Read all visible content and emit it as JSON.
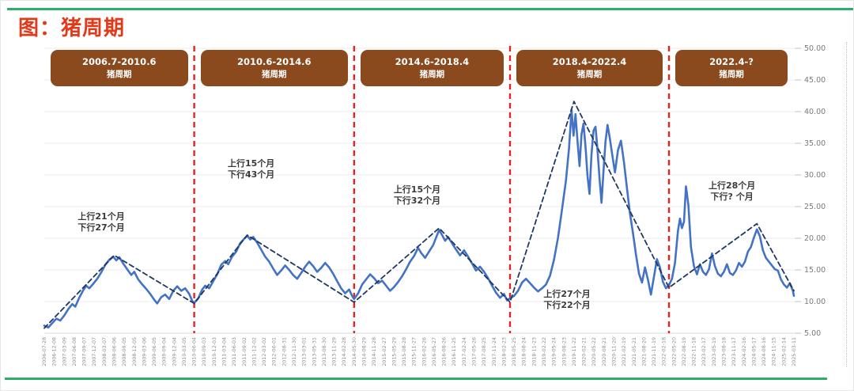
{
  "page": {
    "title": "图：猪周期",
    "title_color": "#e2391b",
    "accent_green": "#2fae6b",
    "cycle_box_color": "#8a4a1e"
  },
  "cycles": [
    {
      "range": "2006.7-2010.6",
      "label": "猪周期"
    },
    {
      "range": "2010.6-2014.6",
      "label": "猪周期"
    },
    {
      "range": "2014.6-2018.4",
      "label": "猪周期"
    },
    {
      "range": "2018.4-2022.4",
      "label": "猪周期"
    },
    {
      "range": "2022.4-?",
      "label": "猪周期"
    }
  ],
  "chart_data": {
    "type": "line",
    "title": "猪周期",
    "ylim": [
      5,
      50
    ],
    "y_ticks": [
      "50.00",
      "45.00",
      "40.00",
      "35.00",
      "30.00",
      "25.00",
      "20.00",
      "15.00",
      "10.00",
      "5.00"
    ],
    "grid": true,
    "x_tick_labels": [
      "2006-07-28",
      "2006-12-08",
      "2007-03-09",
      "2007-06-08",
      "2007-09-07",
      "2007-12-07",
      "2008-03-07",
      "2008-06-06",
      "2008-09-05",
      "2008-12-05",
      "2009-03-06",
      "2009-06-05",
      "2009-09-04",
      "2009-12-04",
      "2010-03-05",
      "2010-06-04",
      "2010-09-03",
      "2010-12-03",
      "2011-03-04",
      "2011-06-03",
      "2011-09-02",
      "2011-12-02",
      "2012-03-02",
      "2012-06-01",
      "2012-08-31",
      "2012-11-30",
      "2013-03-01",
      "2013-05-31",
      "2013-08-30",
      "2013-11-29",
      "2014-02-28",
      "2014-05-30",
      "2014-08-29",
      "2014-11-28",
      "2015-02-27",
      "2015-05-29",
      "2015-08-28",
      "2015-11-27",
      "2016-02-26",
      "2016-05-27",
      "2016-08-26",
      "2016-11-25",
      "2017-02-24",
      "2017-05-26",
      "2017-08-25",
      "2017-11-24",
      "2018-02-23",
      "2018-05-25",
      "2018-08-24",
      "2018-11-23",
      "2019-02-22",
      "2019-05-24",
      "2019-08-23",
      "2019-11-22",
      "2020-02-21",
      "2020-05-22",
      "2020-08-21",
      "2020-11-20",
      "2021-02-19",
      "2021-05-21",
      "2021-08-20",
      "2021-11-19",
      "2022-02-18",
      "2022-05-20",
      "2022-08-19",
      "2022-11-18",
      "2023-02-17",
      "2023-05-19",
      "2023-08-18",
      "2023-11-17",
      "2024-02-16",
      "2024-05-17",
      "2024-08-16",
      "2024-11-15",
      "2025-02-14",
      "2025-03-11"
    ],
    "cycle_boundaries_t": [
      15,
      31,
      46.6,
      62.5
    ],
    "boundary_color": "#e62222",
    "series": [
      {
        "name": "猪价",
        "color": "#4472c4",
        "style": "solid",
        "points": [
          [
            0,
            6.2
          ],
          [
            0.4,
            5.9
          ],
          [
            0.8,
            6.6
          ],
          [
            1.2,
            7.3
          ],
          [
            1.6,
            7.0
          ],
          [
            2,
            7.8
          ],
          [
            2.4,
            8.8
          ],
          [
            2.8,
            9.6
          ],
          [
            3.1,
            9.2
          ],
          [
            3.5,
            10.6
          ],
          [
            3.9,
            11.8
          ],
          [
            4.2,
            12.5
          ],
          [
            4.5,
            12.1
          ],
          [
            4.9,
            12.8
          ],
          [
            5.3,
            13.6
          ],
          [
            5.7,
            14.6
          ],
          [
            6.1,
            15.8
          ],
          [
            6.5,
            16.6
          ],
          [
            6.9,
            17.1
          ],
          [
            7.2,
            16.5
          ],
          [
            7.5,
            17.0
          ],
          [
            7.9,
            16.0
          ],
          [
            8.3,
            15.1
          ],
          [
            8.7,
            14.2
          ],
          [
            9.0,
            14.7
          ],
          [
            9.4,
            13.5
          ],
          [
            9.8,
            12.7
          ],
          [
            10.2,
            12.0
          ],
          [
            10.6,
            11.2
          ],
          [
            11.0,
            10.3
          ],
          [
            11.3,
            9.7
          ],
          [
            11.7,
            10.7
          ],
          [
            12.1,
            11.1
          ],
          [
            12.5,
            10.4
          ],
          [
            12.9,
            11.7
          ],
          [
            13.3,
            12.4
          ],
          [
            13.7,
            11.7
          ],
          [
            14.1,
            12.1
          ],
          [
            14.5,
            11.2
          ],
          [
            14.8,
            10.1
          ],
          [
            15,
            9.8
          ],
          [
            15.4,
            10.5
          ],
          [
            15.8,
            11.9
          ],
          [
            16.1,
            12.5
          ],
          [
            16.5,
            12.1
          ],
          [
            16.9,
            13.2
          ],
          [
            17.3,
            14.3
          ],
          [
            17.7,
            15.8
          ],
          [
            18.1,
            16.4
          ],
          [
            18.4,
            15.9
          ],
          [
            18.8,
            17.1
          ],
          [
            19.2,
            17.9
          ],
          [
            19.6,
            19.2
          ],
          [
            20.0,
            19.9
          ],
          [
            20.3,
            20.4
          ],
          [
            20.6,
            19.8
          ],
          [
            20.9,
            20.2
          ],
          [
            21.3,
            19.3
          ],
          [
            21.7,
            18.2
          ],
          [
            22.1,
            17.1
          ],
          [
            22.5,
            16.3
          ],
          [
            22.9,
            15.2
          ],
          [
            23.3,
            14.2
          ],
          [
            23.7,
            14.9
          ],
          [
            24.1,
            15.7
          ],
          [
            24.5,
            15.0
          ],
          [
            24.9,
            14.2
          ],
          [
            25.3,
            13.6
          ],
          [
            25.7,
            14.5
          ],
          [
            26.1,
            15.5
          ],
          [
            26.5,
            16.3
          ],
          [
            26.9,
            15.6
          ],
          [
            27.3,
            14.7
          ],
          [
            27.7,
            15.3
          ],
          [
            28.1,
            16.1
          ],
          [
            28.5,
            15.4
          ],
          [
            28.9,
            14.4
          ],
          [
            29.3,
            13.2
          ],
          [
            29.7,
            12.1
          ],
          [
            30.1,
            11.3
          ],
          [
            30.5,
            11.9
          ],
          [
            30.8,
            10.9
          ],
          [
            31,
            10.4
          ],
          [
            31.4,
            11.3
          ],
          [
            31.8,
            12.7
          ],
          [
            32.2,
            13.5
          ],
          [
            32.6,
            14.3
          ],
          [
            33.0,
            13.7
          ],
          [
            33.4,
            12.9
          ],
          [
            33.8,
            13.3
          ],
          [
            34.2,
            12.5
          ],
          [
            34.6,
            11.7
          ],
          [
            35.0,
            12.3
          ],
          [
            35.4,
            13.1
          ],
          [
            35.8,
            14.0
          ],
          [
            36.2,
            15.1
          ],
          [
            36.6,
            16.3
          ],
          [
            37.0,
            17.2
          ],
          [
            37.4,
            18.5
          ],
          [
            37.7,
            17.7
          ],
          [
            38.1,
            16.9
          ],
          [
            38.5,
            17.9
          ],
          [
            38.9,
            18.9
          ],
          [
            39.2,
            20.1
          ],
          [
            39.5,
            21.3
          ],
          [
            39.8,
            20.5
          ],
          [
            40.1,
            19.6
          ],
          [
            40.4,
            20.2
          ],
          [
            40.8,
            19.2
          ],
          [
            41.2,
            18.2
          ],
          [
            41.6,
            17.3
          ],
          [
            42.0,
            18.1
          ],
          [
            42.4,
            17.1
          ],
          [
            42.8,
            16.0
          ],
          [
            43.2,
            14.9
          ],
          [
            43.6,
            15.5
          ],
          [
            44.0,
            14.7
          ],
          [
            44.4,
            13.7
          ],
          [
            44.8,
            12.5
          ],
          [
            45.2,
            11.4
          ],
          [
            45.6,
            10.6
          ],
          [
            46.0,
            11.2
          ],
          [
            46.3,
            10.2
          ],
          [
            46.6,
            10.5
          ],
          [
            47.0,
            10.9
          ],
          [
            47.4,
            11.7
          ],
          [
            47.8,
            13.0
          ],
          [
            48.2,
            13.6
          ],
          [
            48.6,
            12.9
          ],
          [
            49.0,
            12.2
          ],
          [
            49.4,
            11.6
          ],
          [
            49.8,
            12.1
          ],
          [
            50.2,
            12.7
          ],
          [
            50.6,
            14.1
          ],
          [
            51.0,
            16.6
          ],
          [
            51.4,
            20.1
          ],
          [
            51.8,
            24.6
          ],
          [
            52.2,
            29.2
          ],
          [
            52.5,
            34.2
          ],
          [
            52.75,
            40.3
          ],
          [
            52.95,
            36.2
          ],
          [
            53.15,
            39.6
          ],
          [
            53.35,
            35.4
          ],
          [
            53.55,
            31.4
          ],
          [
            53.75,
            36.4
          ],
          [
            53.95,
            38.1
          ],
          [
            54.15,
            34.4
          ],
          [
            54.35,
            29.8
          ],
          [
            54.55,
            27.0
          ],
          [
            54.75,
            33.2
          ],
          [
            54.95,
            37.0
          ],
          [
            55.15,
            37.6
          ],
          [
            55.35,
            34.0
          ],
          [
            55.55,
            29.4
          ],
          [
            55.75,
            25.6
          ],
          [
            55.95,
            30.6
          ],
          [
            56.15,
            35.2
          ],
          [
            56.35,
            37.9
          ],
          [
            56.55,
            36.1
          ],
          [
            56.8,
            33.4
          ],
          [
            57.1,
            30.4
          ],
          [
            57.4,
            33.9
          ],
          [
            57.7,
            35.4
          ],
          [
            58.0,
            32.0
          ],
          [
            58.3,
            27.9
          ],
          [
            58.6,
            23.9
          ],
          [
            58.9,
            20.8
          ],
          [
            59.2,
            17.4
          ],
          [
            59.5,
            14.4
          ],
          [
            59.8,
            13.0
          ],
          [
            60.1,
            15.4
          ],
          [
            60.4,
            13.4
          ],
          [
            60.7,
            11.1
          ],
          [
            61.0,
            13.9
          ],
          [
            61.3,
            16.7
          ],
          [
            61.6,
            15.4
          ],
          [
            61.9,
            13.1
          ],
          [
            62.2,
            12.1
          ],
          [
            62.5,
            12.6
          ],
          [
            62.8,
            13.6
          ],
          [
            63.1,
            16.1
          ],
          [
            63.4,
            21.2
          ],
          [
            63.6,
            23.1
          ],
          [
            63.8,
            21.6
          ],
          [
            64.0,
            22.6
          ],
          [
            64.2,
            28.2
          ],
          [
            64.45,
            25.2
          ],
          [
            64.7,
            18.6
          ],
          [
            65.0,
            15.6
          ],
          [
            65.3,
            14.3
          ],
          [
            65.6,
            15.9
          ],
          [
            65.9,
            14.7
          ],
          [
            66.2,
            14.2
          ],
          [
            66.5,
            15.1
          ],
          [
            66.8,
            17.6
          ],
          [
            67.1,
            15.6
          ],
          [
            67.4,
            14.4
          ],
          [
            67.7,
            14.0
          ],
          [
            68.0,
            14.7
          ],
          [
            68.3,
            15.9
          ],
          [
            68.6,
            14.5
          ],
          [
            68.9,
            14.2
          ],
          [
            69.2,
            14.9
          ],
          [
            69.5,
            16.1
          ],
          [
            69.8,
            15.5
          ],
          [
            70.1,
            16.3
          ],
          [
            70.4,
            17.9
          ],
          [
            70.7,
            18.6
          ],
          [
            71.0,
            20.1
          ],
          [
            71.3,
            21.4
          ],
          [
            71.6,
            20.3
          ],
          [
            71.9,
            18.1
          ],
          [
            72.2,
            16.9
          ],
          [
            72.5,
            16.3
          ],
          [
            72.8,
            15.7
          ],
          [
            73.1,
            15.1
          ],
          [
            73.4,
            14.9
          ],
          [
            73.7,
            13.5
          ],
          [
            74.0,
            12.7
          ],
          [
            74.3,
            12.2
          ],
          [
            74.6,
            12.9
          ],
          [
            74.9,
            11.7
          ],
          [
            75,
            10.9
          ]
        ]
      },
      {
        "name": "周期趋势线",
        "color": "#1f3864",
        "style": "dashed",
        "points": [
          [
            0,
            5.8
          ],
          [
            7,
            17.3
          ],
          [
            15,
            9.7
          ],
          [
            20.3,
            20.5
          ],
          [
            31,
            9.9
          ],
          [
            39.5,
            21.6
          ],
          [
            46.6,
            9.9
          ],
          [
            53.0,
            41.6
          ],
          [
            62.5,
            12.2
          ],
          [
            71.3,
            22.3
          ],
          [
            75,
            11.7
          ]
        ]
      }
    ],
    "annotations": [
      {
        "lines": [
          "上行21个月",
          "下行27个月"
        ],
        "t": 5.7,
        "v": 22.5
      },
      {
        "lines": [
          "上行15个月",
          "下行43个月"
        ],
        "t": 20.7,
        "v": 30.9
      },
      {
        "lines": [
          "上行15个月",
          "下行32个月"
        ],
        "t": 37.3,
        "v": 26.8
      },
      {
        "lines": [
          "上行27个月",
          "下行22个月"
        ],
        "t": 52.3,
        "v": 10.3
      },
      {
        "lines": [
          "上行28个月",
          "下行? 个月"
        ],
        "t": 68.8,
        "v": 27.4
      }
    ]
  }
}
